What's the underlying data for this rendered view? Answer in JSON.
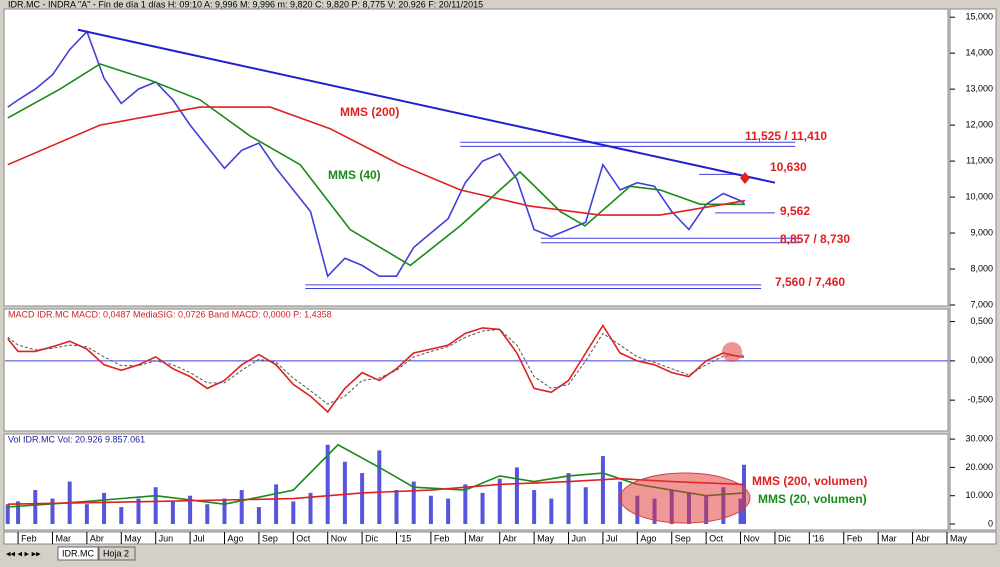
{
  "chart_data": [
    {
      "type": "line",
      "title": "IDR.MC - INDRA \"A\" - Fin de día 1 días H: 09:10 A: 9,996 M: 9,996 m: 9,820 C: 9,820 P: 8,775 V: 20.926 F: 20/11/2015",
      "xlim": [
        -0.38,
        27.03
      ],
      "ylim": [
        7,
        15.2
      ],
      "yticks": [
        {
          "value": 15,
          "label": "15,000"
        },
        {
          "value": 14,
          "label": "14,000"
        },
        {
          "value": 13,
          "label": "13,000"
        },
        {
          "value": 12,
          "label": "12,000"
        },
        {
          "value": 11,
          "label": "11,000"
        },
        {
          "value": 10,
          "label": "10,000"
        },
        {
          "value": 9,
          "label": "9,000"
        },
        {
          "value": 8,
          "label": "8,000"
        },
        {
          "value": 7,
          "label": "7,000"
        }
      ],
      "series": [
        {
          "color": "#4040d8",
          "x": [
            -0.3,
            0,
            0.5,
            1,
            1.5,
            2,
            2.5,
            3,
            3.5,
            4,
            4.5,
            5,
            5.5,
            6,
            6.5,
            7,
            7.5,
            8,
            8.5,
            9,
            9.5,
            10,
            10.5,
            11,
            11.5,
            12,
            12.5,
            13,
            13.5,
            14,
            14.5,
            15,
            15.5,
            16,
            16.5,
            17,
            17.5,
            18,
            18.5,
            19,
            19.5,
            20,
            20.5,
            21,
            21.1
          ],
          "values": [
            12.5,
            12.7,
            13.0,
            13.4,
            14.1,
            14.6,
            13.3,
            12.6,
            13.0,
            13.2,
            12.7,
            12.0,
            11.4,
            10.8,
            11.3,
            11.5,
            10.8,
            10.2,
            9.6,
            7.8,
            8.3,
            8.1,
            7.8,
            7.8,
            8.6,
            9.0,
            9.4,
            10.4,
            11.0,
            11.2,
            10.5,
            9.1,
            8.9,
            9.1,
            9.3,
            10.9,
            10.2,
            10.4,
            10.3,
            9.6,
            9.1,
            9.8,
            10.1,
            9.9,
            9.82
          ]
        },
        {
          "name": "MMS (40)",
          "color": "#1a8a1a",
          "x": [
            -0.3,
            1.22,
            2.38,
            3.84,
            5.29,
            6.74,
            8.2,
            9.65,
            11.4,
            12.85,
            14.01,
            14.59,
            15.76,
            16.48,
            17.79,
            18.66,
            19.83,
            21.13
          ],
          "values": [
            12.2,
            13.0,
            13.7,
            13.25,
            12.7,
            11.7,
            10.9,
            9.1,
            8.1,
            9.2,
            10.2,
            10.7,
            9.6,
            9.2,
            10.3,
            10.2,
            9.8,
            9.8
          ]
        },
        {
          "name": "MMS (200)",
          "color": "#e02020",
          "x": [
            -0.3,
            2.38,
            5.29,
            7.33,
            9.07,
            11.11,
            12.85,
            14.88,
            16.92,
            18.66,
            21.13
          ],
          "values": [
            10.9,
            12.0,
            12.5,
            12.5,
            11.9,
            10.9,
            10.2,
            9.75,
            9.5,
            9.5,
            9.9
          ]
        }
      ],
      "trendline": {
        "color": "#2020cc",
        "x": [
          1.74,
          22.0
        ],
        "values": [
          14.65,
          10.4
        ]
      },
      "levels": [
        {
          "label": "11,525 / 11,410",
          "x": [
            12.85,
            22.59
          ],
          "values": [
            11.525,
            11.41
          ]
        },
        {
          "label": "10,630",
          "x": [
            19.8,
            21.0
          ],
          "values": [
            10.63
          ]
        },
        {
          "label": "9,562",
          "x": [
            20.26,
            22.0
          ],
          "values": [
            9.562
          ]
        },
        {
          "label": "8,857 / 8,730",
          "x": [
            15.2,
            22.7
          ],
          "values": [
            8.857,
            8.73
          ]
        },
        {
          "label": "7,560 / 7,460",
          "x": [
            8.35,
            21.6
          ],
          "values": [
            7.56,
            7.46
          ]
        }
      ]
    },
    {
      "type": "line",
      "title": "MACD IDR.MC MACD: 0,0487 MediaSIG: 0,0726 Band MACD: 0,0000 P: 1,4358",
      "xlim": [
        -0.38,
        27.03
      ],
      "ylim": [
        -0.88,
        0.66
      ],
      "zero_line": true,
      "yticks": [
        {
          "value": 0.5,
          "label": "0,500"
        },
        {
          "value": 0,
          "label": "0,000"
        },
        {
          "value": -0.5,
          "label": "-0,500"
        }
      ],
      "series": [
        {
          "color": "#e02020",
          "x": [
            -0.3,
            0,
            0.5,
            1,
            1.5,
            2,
            2.5,
            3,
            3.5,
            4,
            4.5,
            5,
            5.5,
            6,
            6.5,
            7,
            7.5,
            8,
            8.5,
            9,
            9.5,
            10,
            10.5,
            11,
            11.5,
            12,
            12.5,
            13,
            13.5,
            14,
            14.5,
            15,
            15.5,
            16,
            16.5,
            17,
            17.5,
            18,
            18.5,
            19,
            19.5,
            20,
            20.5,
            21,
            21.1
          ],
          "values": [
            0.28,
            0.12,
            0.12,
            0.18,
            0.25,
            0.15,
            -0.05,
            -0.12,
            -0.05,
            0.05,
            -0.1,
            -0.2,
            -0.35,
            -0.25,
            -0.05,
            0.08,
            -0.05,
            -0.3,
            -0.45,
            -0.65,
            -0.35,
            -0.15,
            -0.25,
            -0.1,
            0.1,
            0.15,
            0.2,
            0.35,
            0.42,
            0.4,
            0.1,
            -0.35,
            -0.4,
            -0.25,
            0.1,
            0.45,
            0.1,
            0.0,
            -0.05,
            -0.15,
            -0.2,
            0.0,
            0.1,
            0.05,
            0.0487
          ]
        },
        {
          "color": "#555555",
          "dash": true,
          "x": [
            -0.3,
            0,
            0.5,
            1,
            1.5,
            2,
            2.5,
            3,
            3.5,
            4,
            4.5,
            5,
            5.5,
            6,
            6.5,
            7,
            7.5,
            8,
            8.5,
            9,
            9.5,
            10,
            10.5,
            11,
            11.5,
            12,
            12.5,
            13,
            13.5,
            14,
            14.5,
            15,
            15.5,
            16,
            16.5,
            17,
            17.5,
            18,
            18.5,
            19,
            19.5,
            20,
            20.5,
            21,
            21.1
          ],
          "values": [
            0.3,
            0.2,
            0.14,
            0.16,
            0.2,
            0.18,
            0.05,
            -0.06,
            -0.06,
            0.0,
            -0.05,
            -0.15,
            -0.28,
            -0.28,
            -0.12,
            0.02,
            -0.02,
            -0.22,
            -0.38,
            -0.55,
            -0.45,
            -0.25,
            -0.22,
            -0.12,
            0.05,
            0.12,
            0.18,
            0.3,
            0.38,
            0.4,
            0.2,
            -0.2,
            -0.35,
            -0.3,
            0.0,
            0.35,
            0.2,
            0.05,
            -0.02,
            -0.1,
            -0.18,
            -0.05,
            0.06,
            0.07,
            0.0726
          ]
        }
      ]
    },
    {
      "type": "bar",
      "title": "Vol IDR.MC Vol: 20.926 9.857.061",
      "xlim": [
        -0.38,
        27.03
      ],
      "ylim": [
        -1.4,
        31.8
      ],
      "yticks": [
        {
          "value": 30,
          "label": "30.000"
        },
        {
          "value": 20,
          "label": "20.000"
        },
        {
          "value": 10,
          "label": "10.000"
        },
        0
      ],
      "xticks": [
        {
          "value": 0,
          "label": "Feb"
        },
        {
          "value": 1,
          "label": "Mar"
        },
        {
          "value": 2,
          "label": "Abr"
        },
        {
          "value": 3,
          "label": "May"
        },
        {
          "value": 4,
          "label": "Jun"
        },
        {
          "value": 5,
          "label": "Jul"
        },
        {
          "value": 6,
          "label": "Ago"
        },
        {
          "value": 7,
          "label": "Sep"
        },
        {
          "value": 8,
          "label": "Oct"
        },
        {
          "value": 9,
          "label": "Nov"
        },
        {
          "value": 10,
          "label": "Dic"
        },
        {
          "value": 11,
          "label": "'15"
        },
        {
          "value": 12,
          "label": "Feb"
        },
        {
          "value": 13,
          "label": "Mar"
        },
        {
          "value": 14,
          "label": "Abr"
        },
        {
          "value": 15,
          "label": "May"
        },
        {
          "value": 16,
          "label": "Jun"
        },
        {
          "value": 17,
          "label": "Jul"
        },
        {
          "value": 18,
          "label": "Ago"
        },
        {
          "value": 19,
          "label": "Sep"
        },
        {
          "value": 20,
          "label": "Oct"
        },
        {
          "value": 21,
          "label": "Nov"
        },
        {
          "value": 22,
          "label": "Dic"
        },
        {
          "value": 23,
          "label": "'16"
        },
        {
          "value": 24,
          "label": "Feb"
        },
        {
          "value": 25,
          "label": "Mar"
        },
        {
          "value": 26,
          "label": "Abr"
        },
        {
          "value": 27,
          "label": "May"
        }
      ],
      "series": [
        {
          "color": "#5555dd",
          "x": [
            -0.3,
            0,
            0.5,
            1,
            1.5,
            2,
            2.5,
            3,
            3.5,
            4,
            4.5,
            5,
            5.5,
            6,
            6.5,
            7,
            7.5,
            8,
            8.5,
            9,
            9.5,
            10,
            10.5,
            11,
            11.5,
            12,
            12.5,
            13,
            13.5,
            14,
            14.5,
            15,
            15.5,
            16,
            16.5,
            17,
            17.5,
            18,
            18.5,
            19,
            19.5,
            20,
            20.5,
            21,
            21.1
          ],
          "values": [
            7,
            8,
            12,
            9,
            15,
            7,
            11,
            6,
            9,
            13,
            8,
            10,
            7,
            9,
            12,
            6,
            14,
            8,
            11,
            28,
            22,
            18,
            26,
            12,
            15,
            10,
            9,
            14,
            11,
            16,
            20,
            12,
            9,
            18,
            13,
            24,
            15,
            10,
            9,
            12,
            11,
            10,
            13,
            9,
            20.926
          ]
        },
        {
          "name": "MMS (20, volumen)",
          "type": "line",
          "color": "#1a8a1a",
          "x": [
            -0.3,
            2,
            4,
            6,
            8,
            9.3,
            10.5,
            11.5,
            13,
            14,
            15,
            16,
            17,
            18,
            19,
            20,
            21.1
          ],
          "values": [
            6,
            8,
            10,
            7,
            12,
            28,
            20,
            13,
            12,
            17,
            15,
            17,
            18,
            14,
            12,
            10,
            11
          ]
        },
        {
          "name": "MMS (200, volumen)",
          "type": "line",
          "color": "#e02020",
          "x": [
            -0.3,
            4,
            8,
            10,
            12,
            14,
            16,
            17.5,
            19,
            21.1
          ],
          "values": [
            7,
            8,
            9,
            11,
            12,
            14,
            15,
            16,
            15,
            14
          ]
        }
      ]
    }
  ],
  "tabs": [
    "IDR.MC",
    "Hoja 2"
  ]
}
